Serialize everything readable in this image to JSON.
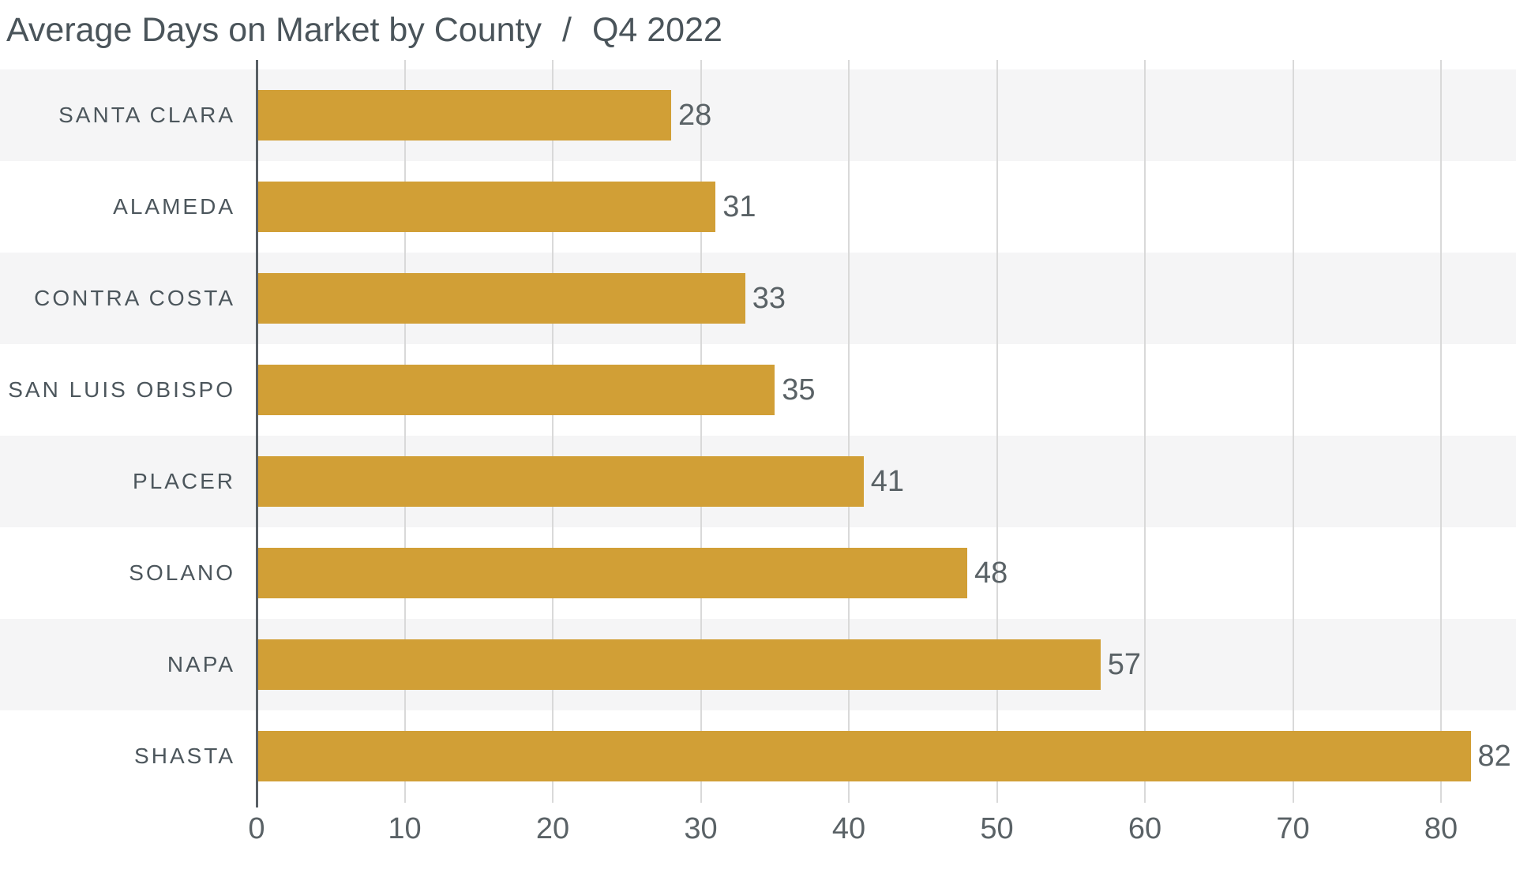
{
  "header": {
    "title": "Average Days on Market by County",
    "separator": "/",
    "period": "Q4 2022"
  },
  "chart_data": {
    "type": "bar",
    "orientation": "horizontal",
    "title": "Average Days on Market by County",
    "subtitle": "Q4 2022",
    "xlabel": "",
    "ylabel": "",
    "categories": [
      "SANTA CLARA",
      "ALAMEDA",
      "CONTRA COSTA",
      "SAN LUIS OBISPO",
      "PLACER",
      "SOLANO",
      "NAPA",
      "SHASTA"
    ],
    "values": [
      28,
      31,
      33,
      35,
      41,
      48,
      57,
      82
    ],
    "xticks": [
      0,
      10,
      20,
      30,
      40,
      50,
      60,
      70,
      80
    ],
    "xlim": [
      0,
      85
    ],
    "grid": "vertical-gridlines-on",
    "legend": "none",
    "value_labels": "shown-at-bar-end",
    "colors": {
      "bar": "#D19F36",
      "row_band": "#F5F5F6",
      "gridline": "#D9D9D9",
      "axis_line": "#596065",
      "category_text": "#4C565C",
      "value_text": "#5A6266",
      "tick_text": "#5A6266",
      "title_text": "#4A545A",
      "background": "#FFFFFF"
    }
  }
}
